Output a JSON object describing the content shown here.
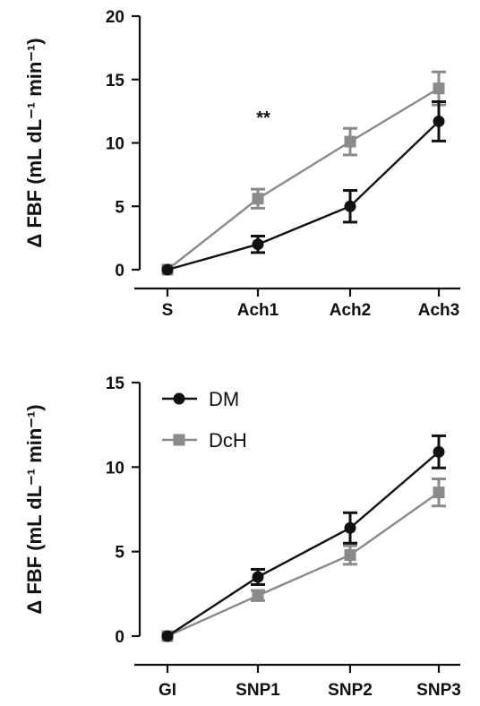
{
  "chart_data": [
    {
      "type": "line",
      "ylabel": "Δ FBF (mL dL⁻¹ min⁻¹)",
      "xlabel": "",
      "categories": [
        "S",
        "Ach1",
        "Ach2",
        "Ach3"
      ],
      "ylim": [
        0,
        20
      ],
      "yticks": [
        0,
        5,
        10,
        15,
        20
      ],
      "grid": false,
      "legend": null,
      "annotations": [
        {
          "text": "**",
          "category": "Ach1",
          "y": 12.5
        }
      ],
      "series": [
        {
          "name": "DM",
          "color": "#111111",
          "marker": "circle",
          "values": [
            0,
            2.0,
            5.0,
            11.7
          ],
          "errors": [
            0,
            0.65,
            1.25,
            1.55
          ]
        },
        {
          "name": "DcH",
          "color": "#8a8a8a",
          "marker": "square",
          "values": [
            0,
            5.6,
            10.1,
            14.3
          ],
          "errors": [
            0,
            0.75,
            1.05,
            1.3
          ]
        }
      ]
    },
    {
      "type": "line",
      "ylabel": "Δ FBF (mL dL⁻¹ min⁻¹)",
      "xlabel": "",
      "categories": [
        "GI",
        "SNP1",
        "SNP2",
        "SNP3"
      ],
      "ylim": [
        0,
        15
      ],
      "yticks": [
        0,
        5,
        10,
        15
      ],
      "grid": false,
      "legend": "top-left",
      "series": [
        {
          "name": "DM",
          "color": "#111111",
          "marker": "circle",
          "values": [
            0,
            3.5,
            6.4,
            10.9
          ],
          "errors": [
            0,
            0.45,
            0.9,
            0.95
          ]
        },
        {
          "name": "DcH",
          "color": "#8a8a8a",
          "marker": "square",
          "values": [
            0,
            2.4,
            4.8,
            8.5
          ],
          "errors": [
            0,
            0.3,
            0.55,
            0.8
          ]
        }
      ]
    }
  ]
}
